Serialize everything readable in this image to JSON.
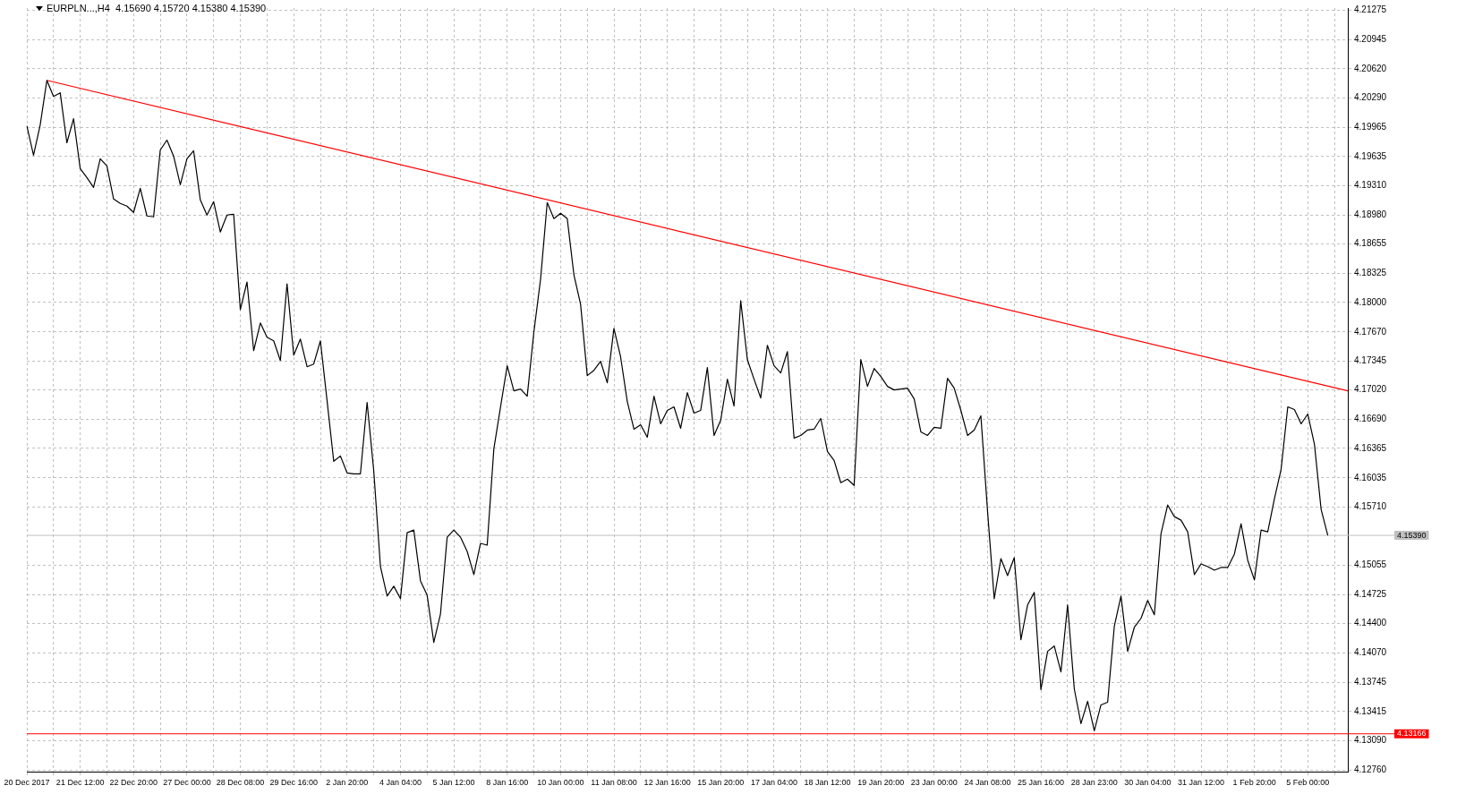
{
  "chart_data": {
    "type": "line",
    "title": "EURPLN...,H4  4.15690 4.15720 4.15380 4.15390",
    "categories": [
      "20 Dec 2017",
      null,
      null,
      null,
      null,
      null,
      null,
      null,
      "21 Dec 12:00",
      null,
      null,
      null,
      null,
      null,
      null,
      null,
      "22 Dec 20:00",
      null,
      null,
      null,
      null,
      null,
      null,
      null,
      "27 Dec 00:00",
      null,
      null,
      null,
      null,
      null,
      null,
      null,
      "28 Dec 08:00",
      null,
      null,
      null,
      null,
      null,
      null,
      null,
      "29 Dec 16:00",
      null,
      null,
      null,
      null,
      null,
      null,
      null,
      "2 Jan 20:00",
      null,
      null,
      null,
      null,
      null,
      null,
      null,
      "4 Jan 04:00",
      null,
      null,
      null,
      null,
      null,
      null,
      null,
      "5 Jan 12:00",
      null,
      null,
      null,
      null,
      null,
      null,
      null,
      "8 Jan 16:00",
      null,
      null,
      null,
      null,
      null,
      null,
      null,
      "10 Jan 00:00",
      null,
      null,
      null,
      null,
      null,
      null,
      null,
      "11 Jan 08:00",
      null,
      null,
      null,
      null,
      null,
      null,
      null,
      "12 Jan 16:00",
      null,
      null,
      null,
      null,
      null,
      null,
      null,
      "15 Jan 20:00",
      null,
      null,
      null,
      null,
      null,
      null,
      null,
      "17 Jan 04:00",
      null,
      null,
      null,
      null,
      null,
      null,
      null,
      "18 Jan 12:00",
      null,
      null,
      null,
      null,
      null,
      null,
      null,
      "19 Jan 20:00",
      null,
      null,
      null,
      null,
      null,
      null,
      null,
      "23 Jan 00:00",
      null,
      null,
      null,
      null,
      null,
      null,
      null,
      "24 Jan 08:00",
      null,
      null,
      null,
      null,
      null,
      null,
      null,
      "25 Jan 16:00",
      null,
      null,
      null,
      null,
      null,
      null,
      null,
      "28 Jan 23:00",
      null,
      null,
      null,
      null,
      null,
      null,
      null,
      "30 Jan 04:00",
      null,
      null,
      null,
      null,
      null,
      null,
      null,
      "31 Jan 12:00",
      null,
      null,
      null,
      null,
      null,
      null,
      null,
      "1 Feb 20:00",
      null,
      null,
      null,
      null,
      null,
      null,
      null,
      "5 Feb 00:00",
      null,
      null,
      null,
      null,
      null,
      null
    ],
    "series": [
      {
        "type": "line",
        "color": "#000000",
        "values": [
          4.1998,
          4.1965,
          4.1999,
          4.2049,
          4.2031,
          4.2035,
          4.1979,
          4.2006,
          4.195,
          4.194,
          4.1929,
          4.1961,
          4.1953,
          4.1916,
          4.1911,
          4.1908,
          4.1901,
          4.1928,
          4.1897,
          4.1896,
          4.1971,
          4.1982,
          4.1964,
          4.1932,
          4.1961,
          4.197,
          4.1915,
          4.1898,
          4.1913,
          4.1879,
          4.1898,
          4.1899,
          4.1792,
          4.1823,
          4.1746,
          4.1777,
          4.1761,
          4.1757,
          4.1735,
          4.1821,
          4.1741,
          4.1759,
          4.1728,
          4.1731,
          4.1757,
          4.169,
          4.1622,
          4.1628,
          4.1609,
          4.1608,
          4.1608,
          4.1688,
          4.1611,
          4.1504,
          4.1471,
          4.1482,
          4.1468,
          4.1542,
          4.1545,
          4.1488,
          4.1472,
          4.1419,
          4.1451,
          4.1537,
          4.1545,
          4.1537,
          4.1521,
          4.1495,
          4.153,
          4.1528,
          4.1636,
          4.1683,
          4.1729,
          4.1701,
          4.1703,
          4.1695,
          4.1767,
          4.1826,
          4.1912,
          4.1894,
          4.19,
          4.1894,
          4.1831,
          4.1798,
          4.1718,
          4.1724,
          4.1734,
          4.171,
          4.1771,
          4.1739,
          4.1689,
          4.1658,
          4.1663,
          4.1649,
          4.1695,
          4.1664,
          4.1679,
          4.1683,
          4.1659,
          4.1699,
          4.1676,
          4.1679,
          4.1727,
          4.1651,
          4.1668,
          4.1714,
          4.1684,
          4.1802,
          4.1736,
          4.1714,
          4.1693,
          4.1752,
          4.1729,
          4.1721,
          4.1745,
          4.1648,
          4.1651,
          4.1657,
          4.1658,
          4.167,
          4.1633,
          4.1623,
          4.1598,
          4.1602,
          4.1595,
          4.1736,
          4.1706,
          4.1726,
          4.1717,
          4.1706,
          4.1702,
          4.1703,
          4.1704,
          4.1692,
          4.1655,
          4.1651,
          4.166,
          4.1659,
          4.1715,
          4.1704,
          4.1679,
          4.1651,
          4.1657,
          4.1673,
          4.1566,
          4.1468,
          4.1513,
          4.1494,
          4.1514,
          4.1422,
          4.1461,
          4.1475,
          4.1366,
          4.1409,
          4.1415,
          4.1386,
          4.1461,
          4.1367,
          4.1328,
          4.1353,
          4.132,
          4.1349,
          4.1352,
          4.1437,
          4.1471,
          4.1409,
          4.1436,
          4.1446,
          4.1466,
          4.145,
          4.1541,
          4.1573,
          4.156,
          4.1556,
          4.1543,
          4.1495,
          4.1507,
          4.1504,
          4.15,
          4.1503,
          4.1503,
          4.1518,
          4.1552,
          4.1511,
          4.1489,
          4.1545,
          4.1543,
          4.158,
          4.1613,
          4.1683,
          4.168,
          4.1664,
          4.1675,
          4.1641,
          4.1568,
          4.1539,
          null,
          null,
          null
        ]
      },
      {
        "type": "line",
        "color": "#ff0000",
        "values": [
          null,
          null,
          null,
          4.2049,
          null,
          null,
          null,
          null,
          null,
          null,
          null,
          null,
          null,
          null,
          null,
          null,
          null,
          null,
          null,
          null,
          null,
          null,
          null,
          null,
          null,
          null,
          null,
          null,
          null,
          null,
          null,
          null,
          null,
          null,
          null,
          null,
          null,
          null,
          null,
          null,
          null,
          null,
          null,
          null,
          null,
          null,
          null,
          null,
          null,
          null,
          null,
          null,
          null,
          null,
          null,
          null,
          null,
          null,
          null,
          null,
          null,
          null,
          null,
          null,
          null,
          null,
          null,
          null,
          null,
          null,
          null,
          null,
          null,
          null,
          null,
          null,
          null,
          null,
          null,
          null,
          null,
          null,
          null,
          null,
          null,
          null,
          null,
          null,
          null,
          null,
          null,
          null,
          null,
          null,
          null,
          null,
          null,
          null,
          null,
          null,
          null,
          null,
          null,
          null,
          null,
          null,
          null,
          null,
          null,
          null,
          null,
          null,
          null,
          null,
          null,
          null,
          null,
          null,
          null,
          null,
          null,
          null,
          null,
          null,
          null,
          null,
          null,
          null,
          null,
          null,
          null,
          null,
          null,
          null,
          null,
          null,
          null,
          null,
          null,
          null,
          null,
          null,
          null,
          null,
          null,
          null,
          null,
          null,
          null,
          null,
          null,
          null,
          null,
          null,
          null,
          null,
          null,
          null,
          null,
          null,
          null,
          null,
          null,
          null,
          null,
          null,
          null,
          null,
          null,
          null,
          null,
          null,
          null,
          null,
          null,
          null,
          null,
          null,
          null,
          null,
          null,
          null,
          null,
          null,
          null,
          null,
          null,
          null,
          null,
          null,
          null,
          null,
          null,
          null,
          null,
          null,
          null,
          null,
          4.1701
        ]
      }
    ],
    "ylim": [
      4.1274,
      4.213
    ],
    "yticks": [
      {
        "value": 4.1276,
        "label": "4.12760"
      },
      {
        "value": 4.1309,
        "label": "4.13090"
      },
      {
        "value": 4.13415,
        "label": "4.13415"
      },
      {
        "value": 4.13745,
        "label": "4.13745"
      },
      {
        "value": 4.1407,
        "label": "4.14070"
      },
      {
        "value": 4.144,
        "label": "4.14400"
      },
      {
        "value": 4.14725,
        "label": "4.14725"
      },
      {
        "value": 4.15055,
        "label": "4.15055"
      },
      {
        "value": 4.1571,
        "label": "4.15710"
      },
      {
        "value": 4.16035,
        "label": "4.16035"
      },
      {
        "value": 4.16365,
        "label": "4.16365"
      },
      {
        "value": 4.1669,
        "label": "4.16690"
      },
      {
        "value": 4.1702,
        "label": "4.17020"
      },
      {
        "value": 4.17345,
        "label": "4.17345"
      },
      {
        "value": 4.1767,
        "label": "4.17670"
      },
      {
        "value": 4.18,
        "label": "4.18000"
      },
      {
        "value": 4.18325,
        "label": "4.18325"
      },
      {
        "value": 4.18655,
        "label": "4.18655"
      },
      {
        "value": 4.1898,
        "label": "4.18980"
      },
      {
        "value": 4.1931,
        "label": "4.19310"
      },
      {
        "value": 4.19635,
        "label": "4.19635"
      },
      {
        "value": 4.19965,
        "label": "4.19965"
      },
      {
        "value": 4.2029,
        "label": "4.20290"
      },
      {
        "value": 4.2062,
        "label": "4.20620"
      },
      {
        "value": 4.20945,
        "label": "4.20945"
      },
      {
        "value": 4.21275,
        "label": "4.21275"
      }
    ],
    "ref_lines": [
      {
        "axis": "y",
        "value": 4.1539,
        "label": "4.15390",
        "color": "#c0c0c0"
      },
      {
        "axis": "y",
        "value": 4.13166,
        "label": "4.13166",
        "color": "#ff0000"
      }
    ],
    "grid": true,
    "marker": "none",
    "line_style": "solid"
  }
}
